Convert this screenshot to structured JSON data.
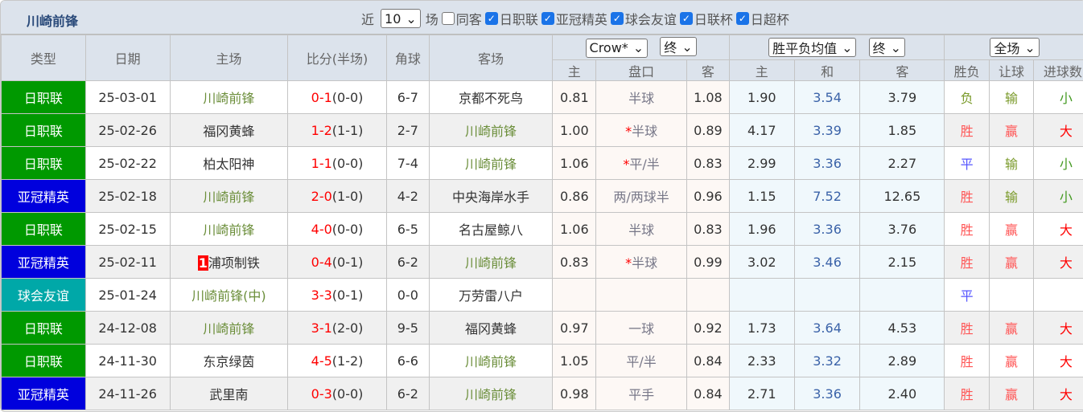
{
  "title": "川崎前锋",
  "filters": {
    "recent_label": "近",
    "count": "10",
    "unit_label": "场",
    "options": [
      {
        "label": "同客",
        "checked": false
      },
      {
        "label": "日职联",
        "checked": true
      },
      {
        "label": "亚冠精英",
        "checked": true
      },
      {
        "label": "球会友谊",
        "checked": true
      },
      {
        "label": "日联杯",
        "checked": true
      },
      {
        "label": "日超杯",
        "checked": true
      }
    ]
  },
  "headers": {
    "type": "类型",
    "date": "日期",
    "home": "主场",
    "score": "比分(半场)",
    "corner": "角球",
    "away": "客场",
    "company_select": "Crow*",
    "ah_time_select": "终",
    "euro_select": "胜平负均值",
    "euro_time_select": "终",
    "period_select": "全场",
    "ah_home": "主",
    "ah_line": "盘口",
    "ah_away": "客",
    "eu_home": "主",
    "eu_draw": "和",
    "eu_away": "客",
    "result": "胜负",
    "ah_result": "让球",
    "ou_result": "进球数"
  },
  "colors": {
    "日职联": "#009900",
    "亚冠精英": "#0000dd",
    "球会友谊": "#00a8a8"
  },
  "rows": [
    {
      "type": "日职联",
      "date": "25-03-01",
      "home": "川崎前锋",
      "score": "0-1",
      "half": "(0-0)",
      "corner": "6-7",
      "away": "京都不死鸟",
      "ah_h": "0.81",
      "line": "半球",
      "star": false,
      "ah_a": "1.08",
      "eh": "1.90",
      "ed": "3.54",
      "ea": "3.79",
      "res": "负",
      "ah": "输",
      "ou": "小"
    },
    {
      "type": "日职联",
      "date": "25-02-26",
      "home": "福冈黄蜂",
      "score": "1-2",
      "half": "(1-1)",
      "corner": "2-7",
      "away": "川崎前锋",
      "ah_h": "1.00",
      "line": "半球",
      "star": true,
      "ah_a": "0.89",
      "eh": "4.17",
      "ed": "3.39",
      "ea": "1.85",
      "res": "胜",
      "ah": "赢",
      "ou": "大"
    },
    {
      "type": "日职联",
      "date": "25-02-22",
      "home": "柏太阳神",
      "score": "1-1",
      "half": "(0-0)",
      "corner": "7-4",
      "away": "川崎前锋",
      "ah_h": "1.06",
      "line": "平/半",
      "star": true,
      "ah_a": "0.83",
      "eh": "2.99",
      "ed": "3.36",
      "ea": "2.27",
      "res": "平",
      "ah": "输",
      "ou": "小"
    },
    {
      "type": "亚冠精英",
      "date": "25-02-18",
      "home": "川崎前锋",
      "score": "2-0",
      "half": "(1-0)",
      "corner": "4-2",
      "away": "中央海岸水手",
      "ah_h": "0.86",
      "line": "两/两球半",
      "star": false,
      "ah_a": "0.96",
      "eh": "1.15",
      "ed": "7.52",
      "ea": "12.65",
      "res": "胜",
      "ah": "输",
      "ou": "小"
    },
    {
      "type": "日职联",
      "date": "25-02-15",
      "home": "川崎前锋",
      "score": "4-0",
      "half": "(0-0)",
      "corner": "6-5",
      "away": "名古屋鲸八",
      "ah_h": "1.06",
      "line": "半球",
      "star": false,
      "ah_a": "0.83",
      "eh": "1.96",
      "ed": "3.36",
      "ea": "3.76",
      "res": "胜",
      "ah": "赢",
      "ou": "大"
    },
    {
      "type": "亚冠精英",
      "date": "25-02-11",
      "home": "浦项制铁",
      "rank": "1",
      "score": "0-4",
      "half": "(0-1)",
      "corner": "6-2",
      "away": "川崎前锋",
      "ah_h": "0.83",
      "line": "半球",
      "star": true,
      "ah_a": "0.99",
      "eh": "3.02",
      "ed": "3.46",
      "ea": "2.15",
      "res": "胜",
      "ah": "赢",
      "ou": "大"
    },
    {
      "type": "球会友谊",
      "date": "25-01-24",
      "home": "川崎前锋(中)",
      "score": "3-3",
      "half": "(0-1)",
      "corner": "0-0",
      "away": "万劳雷八户",
      "ah_h": "",
      "line": "",
      "star": false,
      "ah_a": "",
      "eh": "",
      "ed": "",
      "ea": "",
      "res": "平",
      "ah": "",
      "ou": ""
    },
    {
      "type": "日职联",
      "date": "24-12-08",
      "home": "川崎前锋",
      "score": "3-1",
      "half": "(2-0)",
      "corner": "9-5",
      "away": "福冈黄蜂",
      "ah_h": "0.97",
      "line": "一球",
      "star": false,
      "ah_a": "0.92",
      "eh": "1.73",
      "ed": "3.64",
      "ea": "4.53",
      "res": "胜",
      "ah": "赢",
      "ou": "大"
    },
    {
      "type": "日职联",
      "date": "24-11-30",
      "home": "东京绿茵",
      "score": "4-5",
      "half": "(1-2)",
      "corner": "6-6",
      "away": "川崎前锋",
      "ah_h": "1.05",
      "line": "平/半",
      "star": false,
      "ah_a": "0.84",
      "eh": "2.33",
      "ed": "3.32",
      "ea": "2.89",
      "res": "胜",
      "ah": "赢",
      "ou": "大"
    },
    {
      "type": "亚冠精英",
      "date": "24-11-26",
      "home": "武里南",
      "score": "0-3",
      "half": "(0-0)",
      "corner": "6-2",
      "away": "川崎前锋",
      "ah_h": "0.98",
      "line": "平手",
      "star": false,
      "ah_a": "0.84",
      "eh": "2.71",
      "ed": "3.36",
      "ea": "2.40",
      "res": "胜",
      "ah": "赢",
      "ou": "大"
    }
  ]
}
